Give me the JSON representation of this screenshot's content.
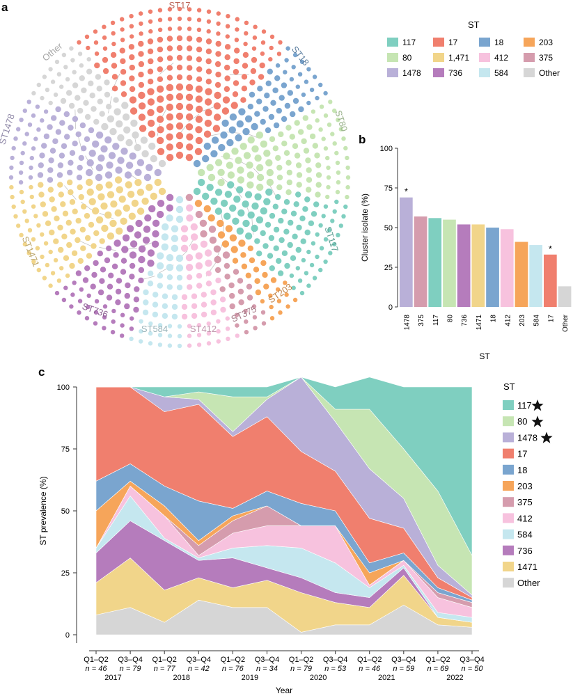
{
  "panels": {
    "a": "a",
    "b": "b",
    "c": "c"
  },
  "colors": {
    "117": "#7fcfc0",
    "80": "#c6e5b3",
    "1478": "#b9b0d8",
    "17": "#f07f6e",
    "18": "#7aa5cf",
    "203": "#f6a55a",
    "375": "#d59cad",
    "412": "#f7c2de",
    "584": "#c5e7ef",
    "736": "#b57cbc",
    "1471": "#f1d58a",
    "Other": "#d6d6d6"
  },
  "network": {
    "labels": [
      "ST17",
      "ST18",
      "ST80",
      "ST117",
      "ST203",
      "ST375",
      "ST412",
      "ST584",
      "ST736",
      "ST1471",
      "ST1478",
      "Other"
    ],
    "sectors": [
      {
        "st": "17",
        "label": "ST17"
      },
      {
        "st": "18",
        "label": "ST18"
      },
      {
        "st": "80",
        "label": "ST80"
      },
      {
        "st": "117",
        "label": "ST117"
      },
      {
        "st": "203",
        "label": "ST203"
      },
      {
        "st": "375",
        "label": "ST375"
      },
      {
        "st": "412",
        "label": "ST412"
      },
      {
        "st": "584",
        "label": "ST584"
      },
      {
        "st": "736",
        "label": "ST736"
      },
      {
        "st": "1471",
        "label": "ST1471"
      },
      {
        "st": "1478",
        "label": "ST1478"
      },
      {
        "st": "Other",
        "label": "Other"
      }
    ]
  },
  "legend_a": {
    "title": "ST",
    "items": [
      {
        "label": "117",
        "st": "117"
      },
      {
        "label": "17",
        "st": "17"
      },
      {
        "label": "18",
        "st": "18"
      },
      {
        "label": "203",
        "st": "203"
      },
      {
        "label": "80",
        "st": "80"
      },
      {
        "label": "1,471",
        "st": "1471"
      },
      {
        "label": "412",
        "st": "412"
      },
      {
        "label": "375",
        "st": "375"
      },
      {
        "label": "1478",
        "st": "1478"
      },
      {
        "label": "736",
        "st": "736"
      },
      {
        "label": "584",
        "st": "584"
      },
      {
        "label": "Other",
        "st": "Other"
      }
    ]
  },
  "legend_c": {
    "title": "ST",
    "items": [
      {
        "label": "117",
        "st": "117",
        "star": true
      },
      {
        "label": "80",
        "st": "80",
        "star": true
      },
      {
        "label": "1478",
        "st": "1478",
        "star": true
      },
      {
        "label": "17",
        "st": "17",
        "star": false
      },
      {
        "label": "18",
        "st": "18",
        "star": false
      },
      {
        "label": "203",
        "st": "203",
        "star": false
      },
      {
        "label": "375",
        "st": "375",
        "star": false
      },
      {
        "label": "412",
        "st": "412",
        "star": false
      },
      {
        "label": "584",
        "st": "584",
        "star": false
      },
      {
        "label": "736",
        "st": "736",
        "star": false
      },
      {
        "label": "1471",
        "st": "1471",
        "star": false
      },
      {
        "label": "Other",
        "st": "Other",
        "star": false
      }
    ]
  },
  "chart_data": [
    {
      "type": "bar",
      "panel": "b",
      "categories": [
        "1478",
        "375",
        "117",
        "80",
        "736",
        "1471",
        "18",
        "412",
        "203",
        "584",
        "17",
        "Other"
      ],
      "values": [
        69,
        57,
        56,
        55,
        52,
        52,
        50,
        49,
        41,
        39,
        33,
        13
      ],
      "annotations": [
        {
          "category": "1478",
          "text": "*"
        },
        {
          "category": "17",
          "text": "*"
        }
      ],
      "xlabel": "ST",
      "ylabel": "Cluster isolate (%)",
      "ylim": [
        0,
        100
      ],
      "yticks": [
        0,
        25,
        50,
        75,
        100
      ]
    },
    {
      "type": "area",
      "panel": "c",
      "stacked": true,
      "xlabel": "Year",
      "ylabel": "ST prevalence (%)",
      "ylim": [
        0,
        100
      ],
      "yticks": [
        0,
        25,
        50,
        75,
        100
      ],
      "categories": [
        {
          "period": "Q1–Q2",
          "n": "n = 46"
        },
        {
          "period": "Q3–Q4",
          "n": "n = 79"
        },
        {
          "period": "Q1–Q2",
          "n": "n = 77"
        },
        {
          "period": "Q3–Q4",
          "n": "n = 42"
        },
        {
          "period": "Q1–Q2",
          "n": "n = 76"
        },
        {
          "period": "Q3–Q4",
          "n": "n = 34"
        },
        {
          "period": "Q1–Q2",
          "n": "n = 79"
        },
        {
          "period": "Q3–Q4",
          "n": "n = 53"
        },
        {
          "period": "Q1–Q2",
          "n": "n = 46"
        },
        {
          "period": "Q3–Q4",
          "n": "n = 59"
        },
        {
          "period": "Q1–Q2",
          "n": "n = 69"
        },
        {
          "period": "Q3–Q4",
          "n": "n = 50"
        }
      ],
      "years": [
        "2017",
        "2018",
        "2019",
        "2020",
        "2021",
        "2022"
      ],
      "series": [
        {
          "name": "Other",
          "values": [
            8,
            11,
            5,
            14,
            11,
            11,
            1,
            4,
            4,
            12,
            4,
            3
          ]
        },
        {
          "name": "1471",
          "values": [
            13,
            20,
            13,
            9,
            8,
            11,
            16,
            9,
            7,
            12,
            3,
            2
          ]
        },
        {
          "name": "736",
          "values": [
            12,
            15,
            20,
            7,
            12,
            5,
            6,
            4,
            4,
            3,
            0,
            0
          ]
        },
        {
          "name": "584",
          "values": [
            2,
            10,
            1,
            1,
            4,
            9,
            12,
            12,
            4,
            1,
            2,
            2
          ]
        },
        {
          "name": "412",
          "values": [
            0,
            4,
            9,
            1,
            6,
            8,
            9,
            15,
            1,
            2,
            6,
            4
          ]
        },
        {
          "name": "375",
          "values": [
            0,
            0,
            0,
            4,
            5,
            8,
            0,
            0,
            0,
            0,
            2,
            2
          ]
        },
        {
          "name": "203",
          "values": [
            15,
            2,
            4,
            2,
            2,
            0,
            0,
            0,
            5,
            0,
            0,
            0
          ]
        },
        {
          "name": "18",
          "values": [
            12,
            7,
            8,
            16,
            3,
            6,
            9,
            6,
            4,
            3,
            2,
            1
          ]
        },
        {
          "name": "17",
          "values": [
            38,
            31,
            30,
            39,
            29,
            30,
            21,
            16,
            18,
            10,
            4,
            1
          ]
        },
        {
          "name": "1478",
          "values": [
            0,
            0,
            6,
            2,
            2,
            7,
            30,
            20,
            20,
            12,
            5,
            1
          ]
        },
        {
          "name": "80",
          "values": [
            0,
            0,
            0,
            3,
            14,
            1,
            0,
            5,
            24,
            20,
            30,
            16
          ]
        },
        {
          "name": "117",
          "values": [
            0,
            0,
            4,
            2,
            4,
            4,
            0,
            9,
            13,
            25,
            42,
            68
          ]
        }
      ]
    }
  ]
}
